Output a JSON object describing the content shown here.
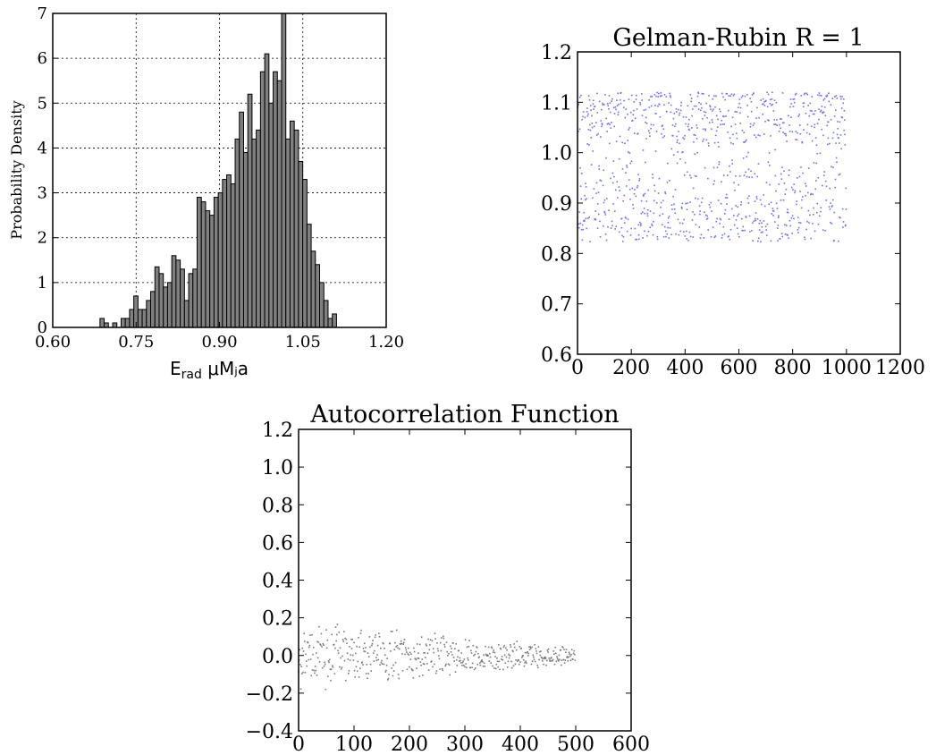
{
  "chart_data": [
    {
      "type": "bar",
      "ylabel": "Probability Density",
      "xlabel_main": "E",
      "xlabel_sub": "rad",
      "xlabel_rest": " μM⁠ⱼa",
      "xlim": [
        0.6,
        1.2
      ],
      "ylim": [
        0,
        7
      ],
      "x_ticks": [
        "0.60",
        "0.75",
        "0.90",
        "1.05",
        "1.20"
      ],
      "y_ticks": [
        "0",
        "1",
        "2",
        "3",
        "4",
        "5",
        "6",
        "7"
      ],
      "grid": true,
      "bar_color": "#808080",
      "bin_start": 0.685,
      "bin_width": 0.0076,
      "values": [
        0.2,
        0.1,
        0,
        0.1,
        0,
        0.2,
        0.2,
        0.4,
        0.7,
        0.4,
        0.4,
        0.6,
        0.8,
        1.35,
        1.2,
        0.9,
        1.0,
        1.6,
        1.5,
        1.3,
        0.6,
        1.2,
        1.3,
        2.9,
        2.8,
        2.6,
        2.5,
        2.9,
        3.0,
        3.3,
        3.4,
        3.2,
        4.2,
        4.8,
        3.9,
        5.2,
        4.2,
        4.4,
        5.7,
        6.1,
        5.0,
        5.7,
        5.5,
        7.2,
        4.2,
        4.6,
        4.4,
        3.7,
        3.3,
        2.3,
        1.7,
        1.4,
        1.0,
        0.6,
        0.2,
        0.3
      ]
    },
    {
      "type": "scatter",
      "title": "Gelman-Rubin R = 1",
      "xlim": [
        0,
        1200
      ],
      "ylim": [
        0.6,
        1.2
      ],
      "x_ticks": [
        "0",
        "200",
        "400",
        "600",
        "800",
        "1000",
        "1200"
      ],
      "y_ticks": [
        "0.6",
        "0.7",
        "0.8",
        "0.9",
        "1.0",
        "1.1",
        "1.2"
      ],
      "grid": false,
      "point_color": "#6f6ff0",
      "n_points": 1000,
      "center": 1.01,
      "spread": 0.11
    },
    {
      "type": "scatter",
      "title": "Autocorrelation Function",
      "xlim": [
        0,
        600
      ],
      "ylim": [
        -0.4,
        1.2
      ],
      "x_ticks": [
        "0",
        "100",
        "200",
        "300",
        "400",
        "500",
        "600"
      ],
      "y_ticks": [
        "−0.4",
        "−0.2",
        "0.0",
        "0.2",
        "0.4",
        "0.6",
        "0.8",
        "1.0",
        "1.2"
      ],
      "grid": false,
      "point_color": "#7a7a7a",
      "n_points": 500,
      "center": 0.0,
      "spread": 0.2
    }
  ]
}
